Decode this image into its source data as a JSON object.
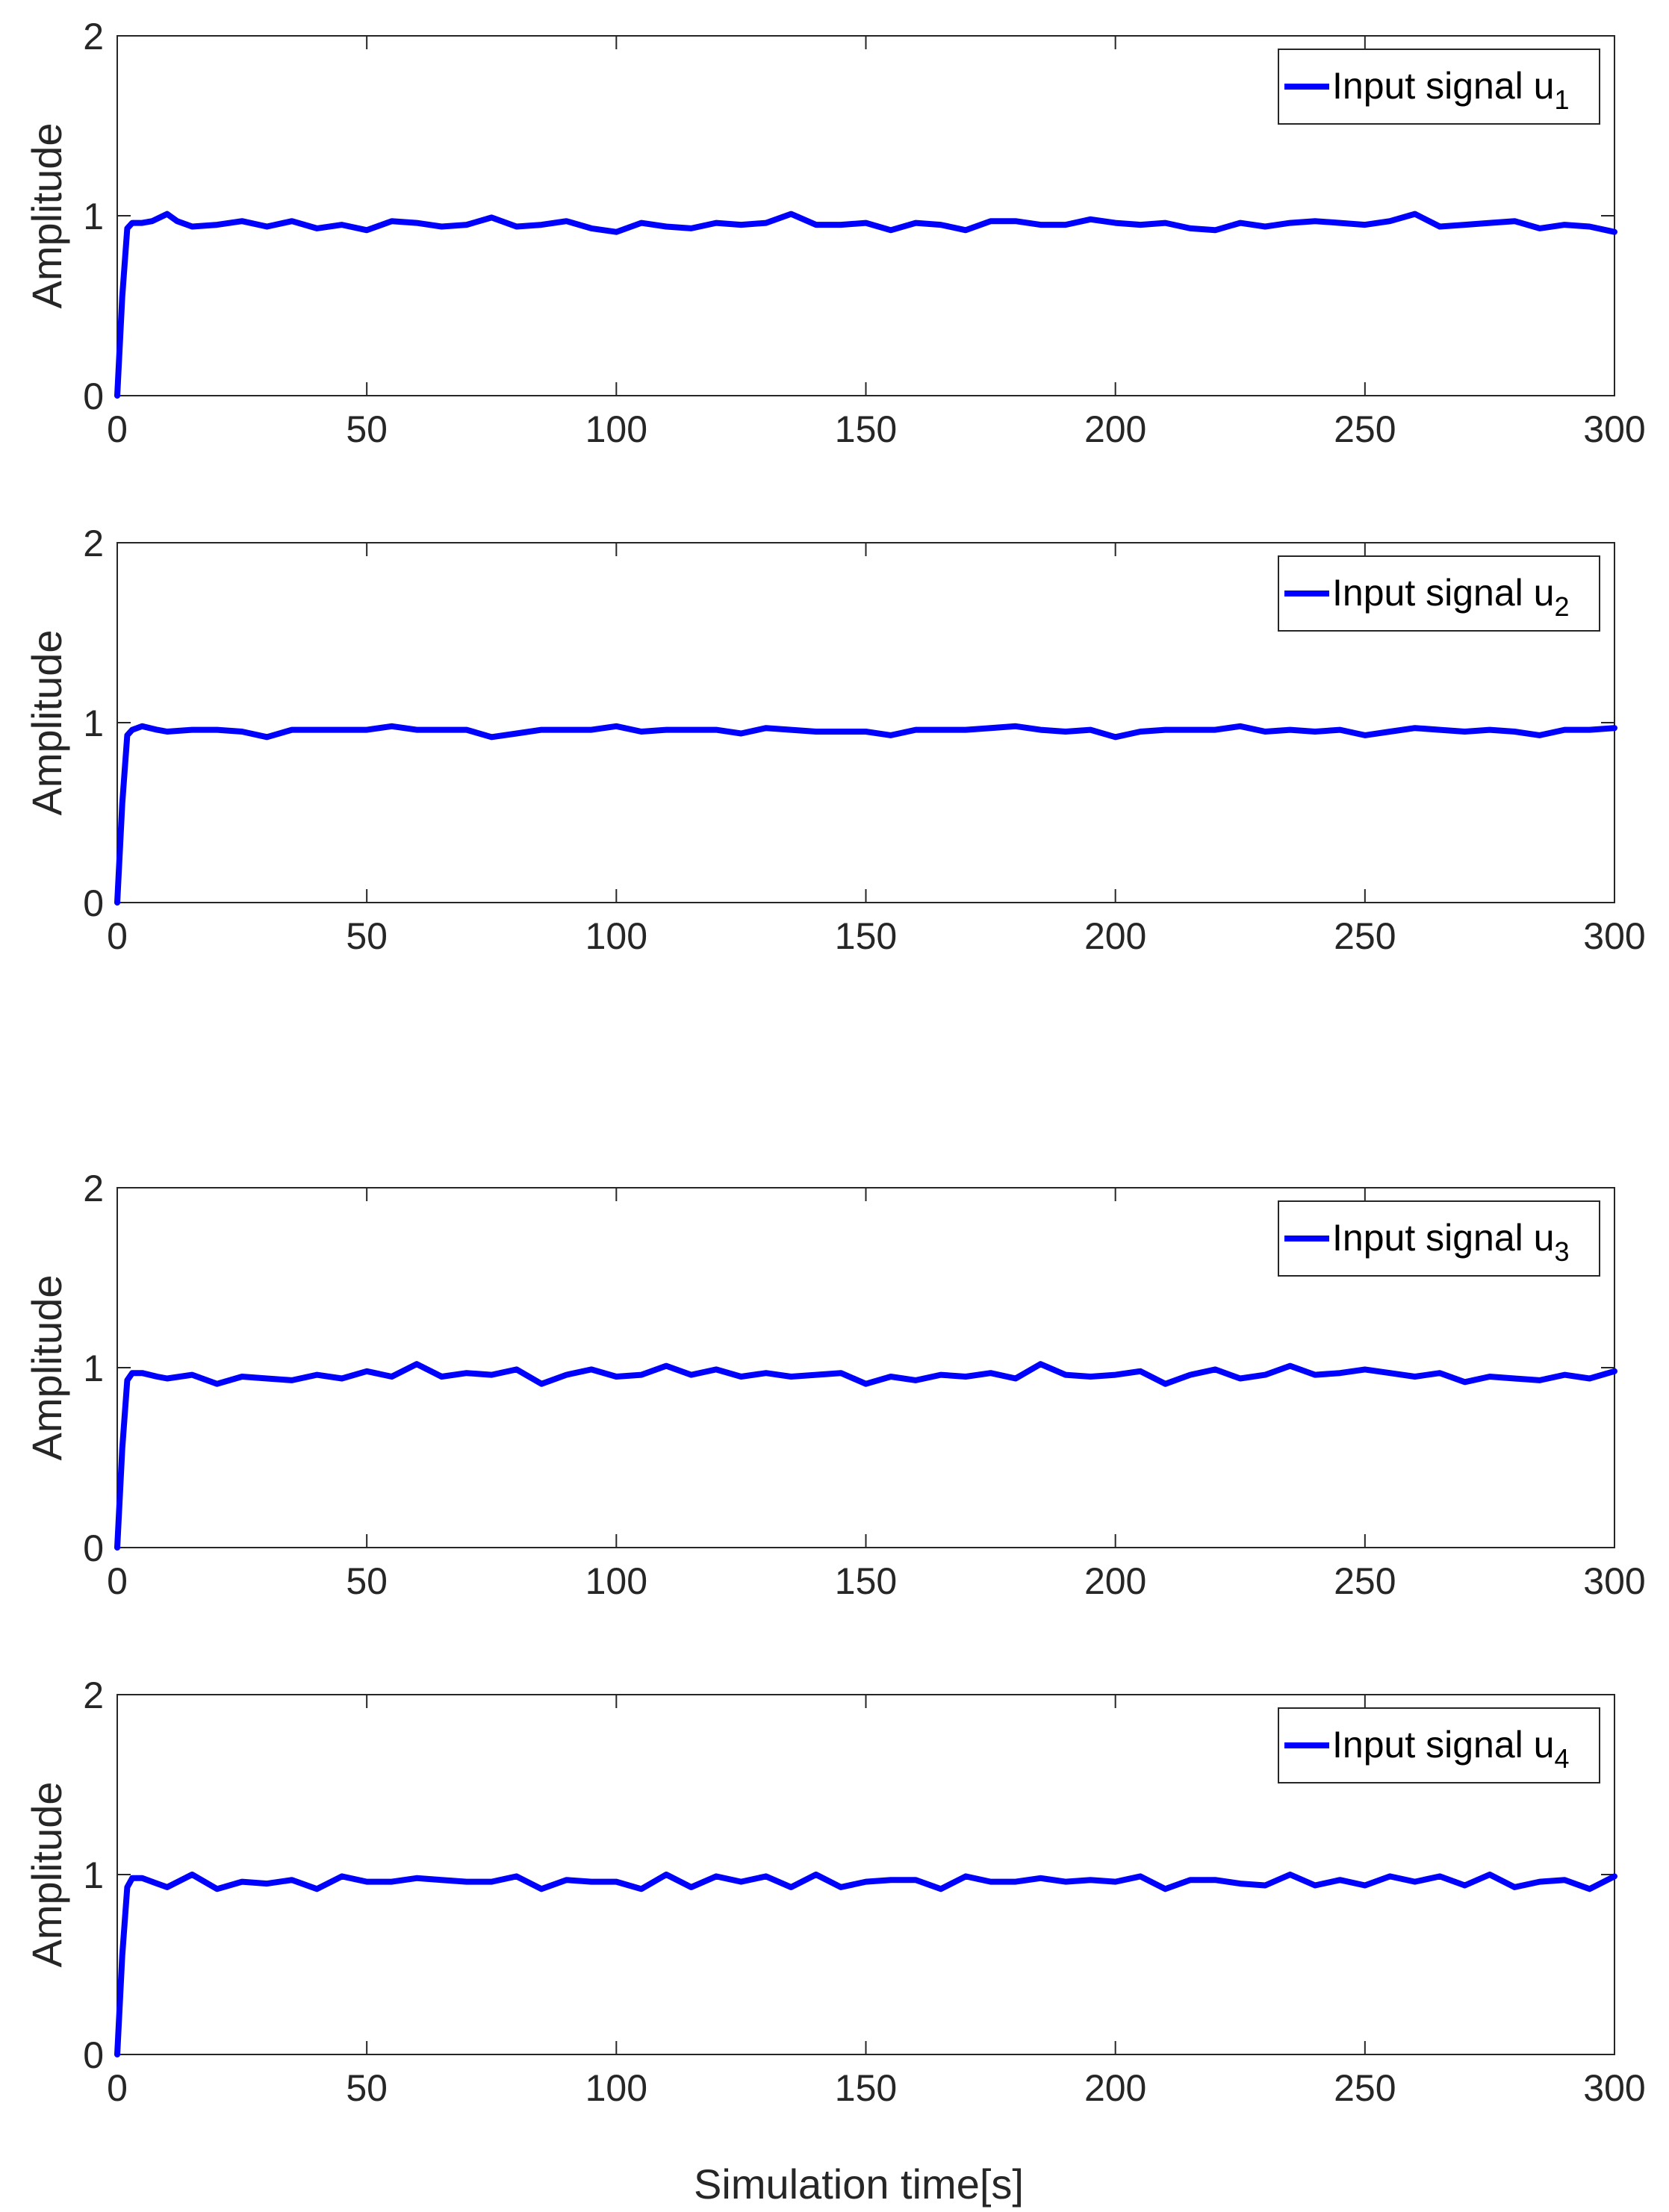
{
  "chart_data": [
    {
      "type": "line",
      "ylabel": "Amplitude",
      "xlim": [
        0,
        300
      ],
      "ylim": [
        0,
        2
      ],
      "xticks": [
        0,
        50,
        100,
        150,
        200,
        250,
        300
      ],
      "yticks": [
        0,
        1,
        2
      ],
      "grid": false,
      "legend_position": "top-right",
      "series": [
        {
          "name": "Input signal u",
          "subscript": "1",
          "color": "#0000ff",
          "x": [
            0,
            1,
            2,
            3,
            5,
            7,
            10,
            12,
            15,
            20,
            25,
            30,
            35,
            40,
            45,
            50,
            55,
            60,
            65,
            70,
            75,
            80,
            85,
            90,
            95,
            100,
            105,
            110,
            115,
            120,
            125,
            130,
            135,
            140,
            145,
            150,
            155,
            160,
            165,
            170,
            175,
            180,
            185,
            190,
            195,
            200,
            205,
            210,
            215,
            220,
            225,
            230,
            235,
            240,
            245,
            250,
            255,
            260,
            265,
            270,
            275,
            280,
            285,
            290,
            295,
            300
          ],
          "y": [
            0,
            0.55,
            0.93,
            0.96,
            0.96,
            0.97,
            1.01,
            0.97,
            0.94,
            0.95,
            0.97,
            0.94,
            0.97,
            0.93,
            0.95,
            0.92,
            0.97,
            0.96,
            0.94,
            0.95,
            0.99,
            0.94,
            0.95,
            0.97,
            0.93,
            0.91,
            0.96,
            0.94,
            0.93,
            0.96,
            0.95,
            0.96,
            1.01,
            0.95,
            0.95,
            0.96,
            0.92,
            0.96,
            0.95,
            0.92,
            0.97,
            0.97,
            0.95,
            0.95,
            0.98,
            0.96,
            0.95,
            0.96,
            0.93,
            0.92,
            0.96,
            0.94,
            0.96,
            0.97,
            0.96,
            0.95,
            0.97,
            1.01,
            0.94,
            0.95,
            0.96,
            0.97,
            0.93,
            0.95,
            0.94,
            0.91
          ]
        }
      ]
    },
    {
      "type": "line",
      "ylabel": "Amplitude",
      "xlim": [
        0,
        300
      ],
      "ylim": [
        0,
        2
      ],
      "xticks": [
        0,
        50,
        100,
        150,
        200,
        250,
        300
      ],
      "yticks": [
        0,
        1,
        2
      ],
      "grid": false,
      "legend_position": "top-right",
      "series": [
        {
          "name": "Input signal u",
          "subscript": "2",
          "color": "#0000ff",
          "x": [
            0,
            1,
            2,
            3,
            5,
            8,
            10,
            15,
            20,
            25,
            30,
            35,
            40,
            45,
            50,
            55,
            60,
            65,
            70,
            75,
            80,
            85,
            90,
            95,
            100,
            105,
            110,
            115,
            120,
            125,
            130,
            135,
            140,
            145,
            150,
            155,
            160,
            165,
            170,
            175,
            180,
            185,
            190,
            195,
            200,
            205,
            210,
            215,
            220,
            225,
            230,
            235,
            240,
            245,
            250,
            255,
            260,
            265,
            270,
            275,
            280,
            285,
            290,
            295,
            300
          ],
          "y": [
            0,
            0.55,
            0.93,
            0.96,
            0.98,
            0.96,
            0.95,
            0.96,
            0.96,
            0.95,
            0.92,
            0.96,
            0.96,
            0.96,
            0.96,
            0.98,
            0.96,
            0.96,
            0.96,
            0.92,
            0.94,
            0.96,
            0.96,
            0.96,
            0.98,
            0.95,
            0.96,
            0.96,
            0.96,
            0.94,
            0.97,
            0.96,
            0.95,
            0.95,
            0.95,
            0.93,
            0.96,
            0.96,
            0.96,
            0.97,
            0.98,
            0.96,
            0.95,
            0.96,
            0.92,
            0.95,
            0.96,
            0.96,
            0.96,
            0.98,
            0.95,
            0.96,
            0.95,
            0.96,
            0.93,
            0.95,
            0.97,
            0.96,
            0.95,
            0.96,
            0.95,
            0.93,
            0.96,
            0.96,
            0.97
          ]
        }
      ]
    },
    {
      "type": "line",
      "ylabel": "Amplitude",
      "xlim": [
        0,
        300
      ],
      "ylim": [
        0,
        2
      ],
      "xticks": [
        0,
        50,
        100,
        150,
        200,
        250,
        300
      ],
      "yticks": [
        0,
        1,
        2
      ],
      "grid": false,
      "legend_position": "top-right",
      "series": [
        {
          "name": "Input signal u",
          "subscript": "3",
          "color": "#0000ff",
          "x": [
            0,
            1,
            2,
            3,
            5,
            8,
            10,
            15,
            20,
            25,
            30,
            35,
            40,
            45,
            50,
            55,
            60,
            65,
            70,
            75,
            80,
            85,
            90,
            95,
            100,
            105,
            110,
            115,
            120,
            125,
            130,
            135,
            140,
            145,
            150,
            155,
            160,
            165,
            170,
            175,
            180,
            185,
            190,
            195,
            200,
            205,
            210,
            215,
            220,
            225,
            230,
            235,
            240,
            245,
            250,
            255,
            260,
            265,
            270,
            275,
            280,
            285,
            290,
            295,
            300
          ],
          "y": [
            0,
            0.55,
            0.93,
            0.97,
            0.97,
            0.95,
            0.94,
            0.96,
            0.91,
            0.95,
            0.94,
            0.93,
            0.96,
            0.94,
            0.98,
            0.95,
            1.02,
            0.95,
            0.97,
            0.96,
            0.99,
            0.91,
            0.96,
            0.99,
            0.95,
            0.96,
            1.01,
            0.96,
            0.99,
            0.95,
            0.97,
            0.95,
            0.96,
            0.97,
            0.91,
            0.95,
            0.93,
            0.96,
            0.95,
            0.97,
            0.94,
            1.02,
            0.96,
            0.95,
            0.96,
            0.98,
            0.91,
            0.96,
            0.99,
            0.94,
            0.96,
            1.01,
            0.96,
            0.97,
            0.99,
            0.97,
            0.95,
            0.97,
            0.92,
            0.95,
            0.94,
            0.93,
            0.96,
            0.94,
            0.98
          ]
        }
      ]
    },
    {
      "type": "line",
      "ylabel": "Amplitude",
      "xlabel": "Simulation time[s]",
      "xlim": [
        0,
        300
      ],
      "ylim": [
        0,
        2
      ],
      "xticks": [
        0,
        50,
        100,
        150,
        200,
        250,
        300
      ],
      "yticks": [
        0,
        1,
        2
      ],
      "grid": false,
      "legend_position": "top-right",
      "series": [
        {
          "name": "Input signal u",
          "subscript": "4",
          "color": "#0000ff",
          "x": [
            0,
            1,
            2,
            3,
            5,
            8,
            10,
            15,
            20,
            25,
            30,
            35,
            40,
            45,
            50,
            55,
            60,
            65,
            70,
            75,
            80,
            85,
            90,
            95,
            100,
            105,
            110,
            115,
            120,
            125,
            130,
            135,
            140,
            145,
            150,
            155,
            160,
            165,
            170,
            175,
            180,
            185,
            190,
            195,
            200,
            205,
            210,
            215,
            220,
            225,
            230,
            235,
            240,
            245,
            250,
            255,
            260,
            265,
            270,
            275,
            280,
            285,
            290,
            295,
            300
          ],
          "y": [
            0,
            0.55,
            0.93,
            0.98,
            0.98,
            0.95,
            0.93,
            1.0,
            0.92,
            0.96,
            0.95,
            0.97,
            0.92,
            0.99,
            0.96,
            0.96,
            0.98,
            0.97,
            0.96,
            0.96,
            0.99,
            0.92,
            0.97,
            0.96,
            0.96,
            0.92,
            1.0,
            0.93,
            0.99,
            0.96,
            0.99,
            0.93,
            1.0,
            0.93,
            0.96,
            0.97,
            0.97,
            0.92,
            0.99,
            0.96,
            0.96,
            0.98,
            0.96,
            0.97,
            0.96,
            0.99,
            0.92,
            0.97,
            0.97,
            0.95,
            0.94,
            1.0,
            0.94,
            0.97,
            0.94,
            0.99,
            0.96,
            0.99,
            0.94,
            1.0,
            0.93,
            0.96,
            0.97,
            0.92,
            0.99
          ]
        }
      ]
    }
  ]
}
